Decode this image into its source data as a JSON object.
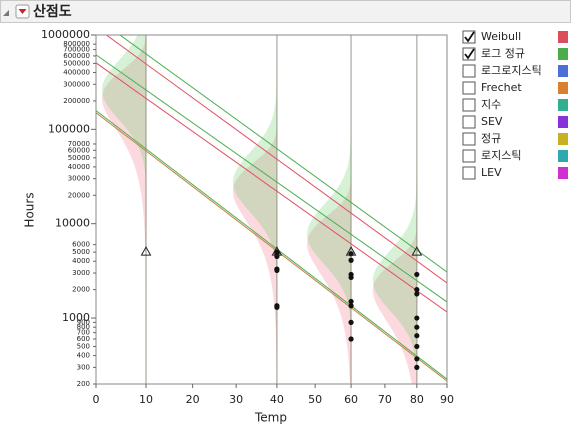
{
  "header": {
    "title": "산점도"
  },
  "chart_data": {
    "type": "scatter",
    "x_label": "Temp",
    "y_label": "Hours",
    "x_scale": "arrhenius",
    "y_scale": "log",
    "xlim": [
      0,
      90
    ],
    "xticks": [
      0,
      10,
      20,
      30,
      40,
      50,
      60,
      70,
      80,
      90
    ],
    "ylim": [
      200,
      1000000
    ],
    "yticks": [
      200,
      300,
      400,
      500,
      600,
      700,
      800,
      900,
      1000,
      2000,
      3000,
      4000,
      5000,
      6000,
      10000,
      20000,
      30000,
      40000,
      50000,
      60000,
      70000,
      100000,
      200000,
      300000,
      400000,
      500000,
      600000,
      700000,
      800000,
      1000000
    ],
    "failures": {
      "x": [
        40,
        40,
        40,
        40,
        40,
        40,
        40,
        60,
        60,
        60,
        60,
        60,
        60,
        60,
        60,
        80,
        80,
        80,
        80,
        80,
        80,
        80,
        80,
        80
      ],
      "values": [
        5000,
        4800,
        4500,
        3300,
        3200,
        1350,
        1300,
        4800,
        4100,
        2900,
        2700,
        1500,
        1350,
        900,
        600,
        2900,
        2000,
        1800,
        1000,
        800,
        650,
        500,
        370,
        300
      ]
    },
    "censored": {
      "x": [
        10,
        40,
        60,
        80
      ],
      "values": [
        5000,
        5000,
        5000,
        5000
      ]
    },
    "fit_lines": [
      {
        "color": "#4caf50",
        "x": [
          4.7,
          90
        ],
        "values": [
          1000000,
          3080
        ]
      },
      {
        "color": "#e05060",
        "x": [
          2,
          90
        ],
        "values": [
          1000000,
          2356
        ]
      },
      {
        "color": "#4caf50",
        "x": [
          0,
          90
        ],
        "values": [
          617000,
          1483
        ]
      },
      {
        "color": "#e05060",
        "x": [
          0,
          90
        ],
        "values": [
          507000,
          1161
        ]
      },
      {
        "color": "#4caf50",
        "x": [
          0,
          90
        ],
        "values": [
          158000,
          225
        ]
      },
      {
        "color": "#c08040",
        "x": [
          0,
          90
        ],
        "values": [
          150000,
          215
        ]
      }
    ],
    "distributions": [
      {
        "name": "Weibull",
        "color": "#d9505a",
        "checked": true
      },
      {
        "name": "로그 정규",
        "color": "#4aad4a",
        "checked": true
      },
      {
        "name": "로그로지스틱",
        "color": "#4a6fd8",
        "checked": false
      },
      {
        "name": "Frechet",
        "color": "#d98030",
        "checked": false
      },
      {
        "name": "지수",
        "color": "#30b090",
        "checked": false
      },
      {
        "name": "SEV",
        "color": "#8a30d8",
        "checked": false
      },
      {
        "name": "정규",
        "color": "#c8b020",
        "checked": false
      },
      {
        "name": "로지스틱",
        "color": "#30a8b0",
        "checked": false
      },
      {
        "name": "LEV",
        "color": "#d030d0",
        "checked": false
      }
    ]
  }
}
